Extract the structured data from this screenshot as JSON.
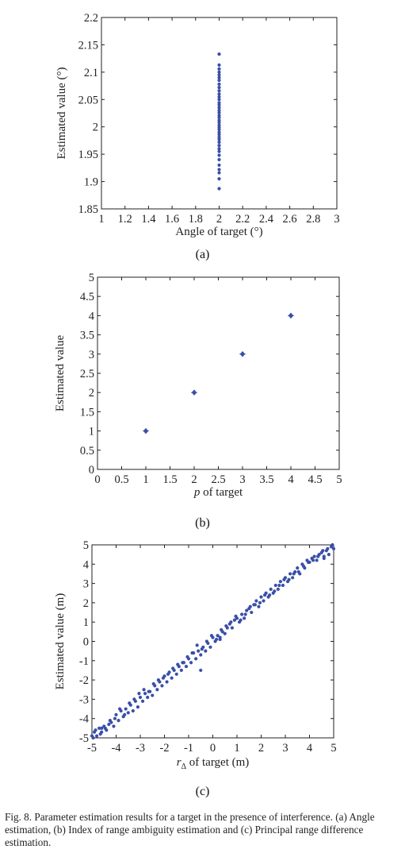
{
  "chart_data": [
    {
      "type": "scatter",
      "xlabel": "Angle of target (°)",
      "ylabel": "Estimated value (°)",
      "xlim": [
        1,
        3
      ],
      "ylim": [
        1.85,
        2.2
      ],
      "xticks": [
        "1",
        "1.2",
        "1.4",
        "1.6",
        "1.8",
        "2",
        "2.2",
        "2.4",
        "2.6",
        "2.8",
        "3"
      ],
      "yticks": [
        "1.85",
        "1.9",
        "1.95",
        "2",
        "2.05",
        "2.1",
        "2.15",
        "2.2"
      ],
      "grid": false,
      "marker_color": "#3a4fa8",
      "points": {
        "x": [
          2,
          2,
          2,
          2,
          2,
          2,
          2,
          2,
          2,
          2,
          2,
          2,
          2,
          2,
          2,
          2,
          2,
          2,
          2,
          2,
          2,
          2,
          2,
          2,
          2,
          2,
          2,
          2,
          2,
          2,
          2,
          2,
          2,
          2,
          2,
          2,
          2,
          2,
          2,
          2
        ],
        "y": [
          2.133,
          2.113,
          2.106,
          2.1,
          2.095,
          2.09,
          2.085,
          2.078,
          2.072,
          2.066,
          2.06,
          2.055,
          2.05,
          2.044,
          2.04,
          2.035,
          2.03,
          2.026,
          2.021,
          2.017,
          2.012,
          2.008,
          2.003,
          1.999,
          1.995,
          1.99,
          1.986,
          1.981,
          1.977,
          1.972,
          1.966,
          1.96,
          1.955,
          1.948,
          1.94,
          1.93,
          1.922,
          1.916,
          1.905,
          1.887
        ]
      }
    },
    {
      "type": "scatter",
      "xlabel": "of target",
      "xlabel_italic": "p",
      "ylabel": "Estimated value",
      "xlim": [
        0,
        5
      ],
      "ylim": [
        0,
        5
      ],
      "xticks": [
        "0",
        "0.5",
        "1",
        "1.5",
        "2",
        "2.5",
        "3",
        "3.5",
        "4",
        "4.5",
        "5"
      ],
      "yticks": [
        "0",
        "0.5",
        "1",
        "1.5",
        "2",
        "2.5",
        "3",
        "3.5",
        "4",
        "4.5",
        "5"
      ],
      "grid": false,
      "marker_color": "#3a4fa8",
      "points": {
        "x": [
          1,
          2,
          3,
          4
        ],
        "y": [
          1,
          2,
          3,
          4
        ]
      }
    },
    {
      "type": "scatter",
      "xlabel": " of target (m)",
      "xlabel_italic": "r",
      "xlabel_sub": "Δ",
      "ylabel": "Estimated value (m)",
      "xlim": [
        -5,
        5
      ],
      "ylim": [
        -5,
        5
      ],
      "xticks": [
        "-5",
        "-4",
        "-3",
        "-2",
        "-1",
        "0",
        "1",
        "2",
        "3",
        "4",
        "5"
      ],
      "yticks": [
        "-5",
        "-4",
        "-3",
        "-2",
        "-1",
        "0",
        "1",
        "2",
        "3",
        "4",
        "5"
      ],
      "grid": false,
      "marker_color": "#3a4fa8",
      "points": {
        "x": [
          -5,
          -4.9,
          -4.8,
          -4.7,
          -4.6,
          -4.5,
          -4.4,
          -4.3,
          -4.2,
          -4.1,
          -4,
          -3.9,
          -3.8,
          -3.7,
          -3.6,
          -3.5,
          -3.4,
          -3.3,
          -3.2,
          -3.1,
          -3,
          -2.9,
          -2.8,
          -2.7,
          -2.6,
          -2.5,
          -2.4,
          -2.3,
          -2.2,
          -2.1,
          -2,
          -1.9,
          -1.8,
          -1.7,
          -1.6,
          -1.5,
          -1.4,
          -1.3,
          -1.2,
          -1.1,
          -1,
          -0.9,
          -0.8,
          -0.7,
          -0.6,
          -0.5,
          -0.4,
          -0.3,
          -0.2,
          -0.1,
          0,
          0.1,
          0.2,
          0.3,
          0.4,
          0.5,
          0.6,
          0.7,
          0.8,
          0.9,
          1,
          1.1,
          1.2,
          1.3,
          1.4,
          1.5,
          1.6,
          1.7,
          1.8,
          1.9,
          2,
          2.1,
          2.2,
          2.3,
          2.4,
          2.5,
          2.6,
          2.7,
          2.8,
          2.9,
          3,
          3.1,
          3.2,
          3.3,
          3.4,
          3.5,
          3.6,
          3.7,
          3.8,
          3.9,
          4,
          4.1,
          4.2,
          4.3,
          4.4,
          4.5,
          4.6,
          4.7,
          4.8,
          4.9,
          5,
          -4.95,
          -4.85,
          -4.65,
          -4.45,
          -4.25,
          -4.05,
          -3.85,
          -3.65,
          -3.45,
          -3.25,
          -3.05,
          -2.85,
          -2.65,
          -2.45,
          -2.25,
          -2.05,
          -1.85,
          -1.65,
          -1.45,
          -1.25,
          -1.05,
          -0.85,
          -0.65,
          -0.45,
          -0.25,
          -0.05,
          0.15,
          0.35,
          0.55,
          0.75,
          0.95,
          1.15,
          1.35,
          1.55,
          1.75,
          1.95,
          2.15,
          2.35,
          2.55,
          2.75,
          2.95,
          3.15,
          3.35,
          3.55,
          3.75,
          3.95,
          4.15,
          4.35,
          4.55,
          4.75,
          4.95,
          -0.5,
          0.3,
          -4.6,
          4.6
        ],
        "y": [
          -4.9,
          -4.7,
          -4.9,
          -4.5,
          -4.7,
          -4.4,
          -4.6,
          -4.3,
          -4.2,
          -4.4,
          -3.8,
          -4.1,
          -3.6,
          -3.9,
          -3.5,
          -3.7,
          -3.3,
          -3.6,
          -3.1,
          -3.4,
          -2.9,
          -3.1,
          -2.7,
          -2.9,
          -2.6,
          -2.8,
          -2.3,
          -2.5,
          -2.1,
          -2.3,
          -1.8,
          -2.1,
          -1.6,
          -1.9,
          -1.5,
          -1.7,
          -1.3,
          -1.5,
          -1.1,
          -1.3,
          -0.9,
          -1.1,
          -0.6,
          -0.9,
          -0.5,
          -0.7,
          -0.3,
          -0.5,
          -0.1,
          -0.3,
          0.2,
          0,
          0.3,
          0.1,
          0.5,
          0.4,
          0.7,
          0.9,
          0.7,
          1.1,
          1.2,
          1,
          1.4,
          1.2,
          1.6,
          1.7,
          1.5,
          1.9,
          2.1,
          1.8,
          2.3,
          2.1,
          2.5,
          2.3,
          2.7,
          2.5,
          2.9,
          2.7,
          3.1,
          2.9,
          3.3,
          3.1,
          3.5,
          3.3,
          3.6,
          3.8,
          3.5,
          4,
          3.8,
          4.2,
          4.1,
          4.3,
          4.4,
          4.2,
          4.5,
          4.6,
          4.3,
          4.7,
          4.5,
          4.9,
          4.8,
          -5,
          -4.6,
          -4.8,
          -4.5,
          -4.1,
          -4,
          -3.5,
          -3.8,
          -3.2,
          -3,
          -2.7,
          -2.5,
          -2.6,
          -2.2,
          -2,
          -1.9,
          -1.7,
          -1.4,
          -1.2,
          -1.1,
          -0.8,
          -0.6,
          -0.2,
          -0.4,
          0,
          0.3,
          0.1,
          0.6,
          0.8,
          1,
          1.3,
          1.1,
          1.4,
          1.8,
          1.9,
          2,
          2.4,
          2.4,
          2.6,
          2.9,
          3.2,
          3.2,
          3.5,
          3.6,
          3.9,
          4.1,
          4.2,
          4.4,
          4.7,
          4.8,
          5,
          -1.5,
          0.2,
          -4.5,
          4.4
        ]
      }
    }
  ],
  "labels": {
    "sub_a": "(a)",
    "sub_b": "(b)",
    "sub_c": "(c)",
    "caption": "Fig. 8.   Parameter estimation results for a target in the presence of interference. (a) Angle estimation, (b) Index of range ambiguity estimation and (c) Principal range difference estimation."
  }
}
